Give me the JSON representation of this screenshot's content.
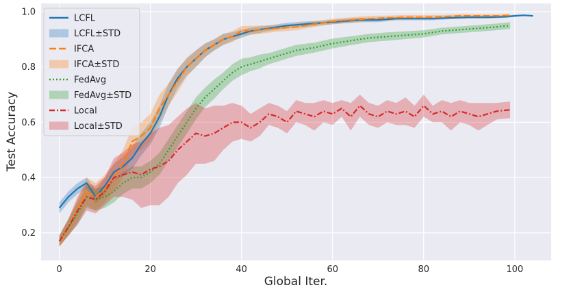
{
  "chart_data": {
    "type": "line",
    "title": "",
    "xlabel": "Global Iter.",
    "ylabel": "Test  Accuracy",
    "xlim": [
      -4,
      108
    ],
    "ylim": [
      0.1,
      1.03
    ],
    "xticks": [
      0,
      20,
      40,
      60,
      80,
      100
    ],
    "xtick_labels": [
      "0",
      "20",
      "40",
      "60",
      "80",
      "100"
    ],
    "yticks": [
      0.2,
      0.4,
      0.6,
      0.8,
      1.0
    ],
    "ytick_labels": [
      "0.2",
      "0.4",
      "0.6",
      "0.8",
      "1.0"
    ],
    "grid": true,
    "background": "#eaeaf2",
    "legend_position": "top-left",
    "series": [
      {
        "name": "LCFL",
        "band_name": "LCFL±STD",
        "color": "#1f77b4",
        "dash": "solid",
        "x": [
          0,
          2,
          4,
          6,
          8,
          10,
          12,
          14,
          16,
          18,
          20,
          22,
          24,
          26,
          28,
          30,
          32,
          34,
          36,
          38,
          40,
          42,
          44,
          46,
          48,
          50,
          54,
          58,
          62,
          66,
          70,
          74,
          78,
          82,
          86,
          90,
          94,
          98,
          100,
          102,
          104
        ],
        "y": [
          0.29,
          0.33,
          0.36,
          0.38,
          0.33,
          0.37,
          0.42,
          0.44,
          0.47,
          0.52,
          0.56,
          0.62,
          0.7,
          0.76,
          0.8,
          0.83,
          0.86,
          0.88,
          0.9,
          0.91,
          0.92,
          0.93,
          0.935,
          0.94,
          0.945,
          0.95,
          0.955,
          0.96,
          0.965,
          0.97,
          0.97,
          0.975,
          0.975,
          0.975,
          0.978,
          0.98,
          0.98,
          0.982,
          0.985,
          0.987,
          0.985
        ],
        "std": [
          0.02,
          0.02,
          0.02,
          0.02,
          0.025,
          0.03,
          0.03,
          0.035,
          0.04,
          0.04,
          0.04,
          0.04,
          0.04,
          0.035,
          0.03,
          0.03,
          0.025,
          0.02,
          0.02,
          0.015,
          0.015,
          0.012,
          0.012,
          0.01,
          0.01,
          0.01,
          0.01,
          0.008,
          0.008,
          0.008,
          0.008,
          0.006,
          0.006,
          0.006,
          0.005,
          0.005,
          0.005,
          0.004,
          0.004,
          0.003,
          0.003
        ]
      },
      {
        "name": "IFCA",
        "band_name": "IFCA±STD",
        "color": "#ff7f0e",
        "dash": "10,4",
        "x": [
          0,
          2,
          4,
          6,
          8,
          10,
          12,
          14,
          16,
          18,
          20,
          22,
          24,
          26,
          28,
          30,
          32,
          34,
          36,
          38,
          40,
          44,
          48,
          52,
          56,
          60,
          64,
          68,
          72,
          76,
          80,
          84,
          88,
          92,
          96,
          99
        ],
        "y": [
          0.17,
          0.22,
          0.28,
          0.35,
          0.33,
          0.36,
          0.4,
          0.45,
          0.53,
          0.55,
          0.58,
          0.65,
          0.7,
          0.75,
          0.8,
          0.83,
          0.86,
          0.88,
          0.9,
          0.91,
          0.93,
          0.935,
          0.94,
          0.945,
          0.955,
          0.965,
          0.97,
          0.975,
          0.978,
          0.98,
          0.98,
          0.982,
          0.985,
          0.985,
          0.985,
          0.987
        ],
        "std": [
          0.02,
          0.03,
          0.04,
          0.05,
          0.05,
          0.05,
          0.05,
          0.05,
          0.05,
          0.05,
          0.05,
          0.05,
          0.04,
          0.04,
          0.035,
          0.03,
          0.025,
          0.02,
          0.02,
          0.02,
          0.018,
          0.015,
          0.012,
          0.012,
          0.01,
          0.01,
          0.01,
          0.01,
          0.008,
          0.008,
          0.008,
          0.006,
          0.006,
          0.005,
          0.005,
          0.004
        ]
      },
      {
        "name": "FedAvg",
        "band_name": "FedAvg±STD",
        "color": "#2ca02c",
        "dash": "2,3",
        "x": [
          0,
          2,
          4,
          6,
          8,
          10,
          12,
          14,
          16,
          18,
          20,
          22,
          24,
          26,
          28,
          30,
          32,
          34,
          36,
          38,
          40,
          42,
          44,
          46,
          48,
          50,
          52,
          56,
          60,
          64,
          68,
          72,
          76,
          80,
          84,
          88,
          92,
          96,
          99
        ],
        "y": [
          0.17,
          0.22,
          0.27,
          0.33,
          0.32,
          0.33,
          0.35,
          0.38,
          0.4,
          0.4,
          0.42,
          0.45,
          0.5,
          0.55,
          0.6,
          0.65,
          0.69,
          0.72,
          0.75,
          0.78,
          0.8,
          0.81,
          0.82,
          0.83,
          0.84,
          0.85,
          0.86,
          0.87,
          0.885,
          0.895,
          0.905,
          0.91,
          0.915,
          0.92,
          0.93,
          0.935,
          0.94,
          0.945,
          0.95
        ],
        "std": [
          0.02,
          0.03,
          0.04,
          0.04,
          0.04,
          0.04,
          0.04,
          0.04,
          0.04,
          0.04,
          0.04,
          0.04,
          0.04,
          0.04,
          0.04,
          0.04,
          0.035,
          0.035,
          0.03,
          0.03,
          0.03,
          0.025,
          0.025,
          0.02,
          0.02,
          0.02,
          0.02,
          0.018,
          0.018,
          0.016,
          0.015,
          0.015,
          0.014,
          0.013,
          0.012,
          0.012,
          0.012,
          0.012,
          0.012
        ]
      },
      {
        "name": "Local",
        "band_name": "Local±STD",
        "color": "#d62728",
        "dash": "8,3,2,3",
        "x": [
          0,
          2,
          4,
          6,
          8,
          10,
          12,
          14,
          16,
          18,
          20,
          22,
          24,
          26,
          28,
          30,
          32,
          34,
          36,
          38,
          40,
          42,
          44,
          46,
          48,
          50,
          52,
          54,
          56,
          58,
          60,
          62,
          64,
          66,
          68,
          70,
          72,
          74,
          76,
          78,
          80,
          82,
          84,
          86,
          88,
          90,
          92,
          94,
          96,
          99
        ],
        "y": [
          0.17,
          0.22,
          0.28,
          0.33,
          0.32,
          0.35,
          0.4,
          0.41,
          0.42,
          0.41,
          0.43,
          0.44,
          0.46,
          0.5,
          0.53,
          0.56,
          0.55,
          0.56,
          0.58,
          0.6,
          0.6,
          0.58,
          0.6,
          0.63,
          0.62,
          0.6,
          0.64,
          0.63,
          0.62,
          0.64,
          0.63,
          0.65,
          0.62,
          0.66,
          0.63,
          0.62,
          0.64,
          0.63,
          0.64,
          0.62,
          0.66,
          0.63,
          0.64,
          0.62,
          0.64,
          0.63,
          0.62,
          0.63,
          0.64,
          0.645
        ],
        "std": [
          0.02,
          0.03,
          0.05,
          0.05,
          0.05,
          0.05,
          0.07,
          0.08,
          0.1,
          0.12,
          0.13,
          0.14,
          0.13,
          0.12,
          0.12,
          0.11,
          0.1,
          0.1,
          0.08,
          0.07,
          0.06,
          0.05,
          0.05,
          0.04,
          0.04,
          0.04,
          0.04,
          0.04,
          0.05,
          0.04,
          0.04,
          0.03,
          0.05,
          0.04,
          0.04,
          0.04,
          0.04,
          0.04,
          0.05,
          0.04,
          0.04,
          0.03,
          0.04,
          0.05,
          0.04,
          0.04,
          0.05,
          0.04,
          0.03,
          0.03
        ]
      }
    ]
  }
}
